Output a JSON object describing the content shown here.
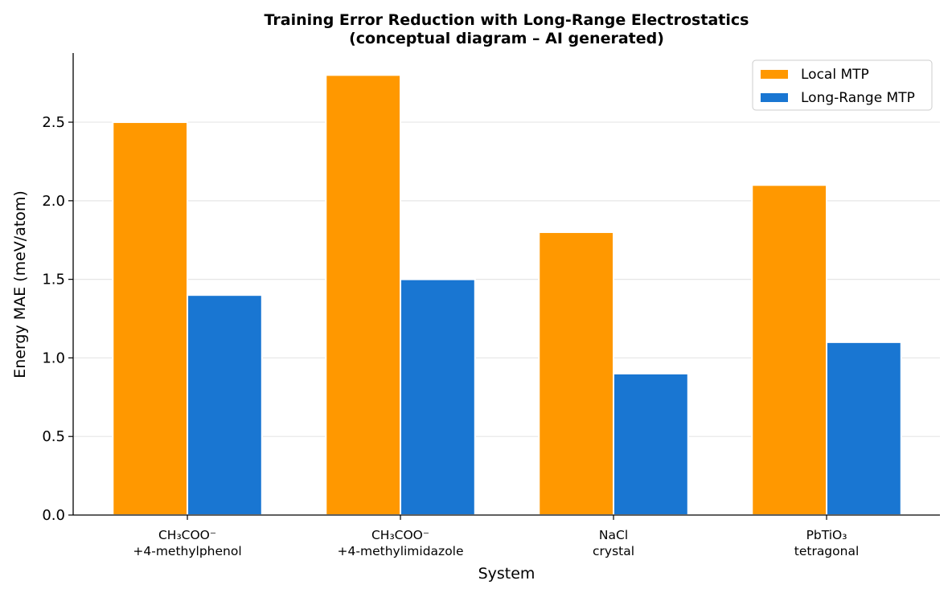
{
  "chart_data": {
    "type": "bar",
    "title": "Training Error Reduction with Long-Range Electrostatics",
    "subtitle": "(conceptual diagram – AI generated)",
    "xlabel": "System",
    "ylabel": "Energy MAE (meV/atom)",
    "categories": [
      [
        "CH₃COO⁻",
        "+4-methylphenol"
      ],
      [
        "CH₃COO⁻",
        "+4-methylimidazole"
      ],
      [
        "NaCl",
        "crystal"
      ],
      [
        "PbTiO₃",
        "tetragonal"
      ]
    ],
    "series": [
      {
        "name": "Local MTP",
        "values": [
          2.5,
          2.8,
          1.8,
          2.1
        ],
        "color": "#FF9800"
      },
      {
        "name": "Long-Range MTP",
        "values": [
          1.4,
          1.5,
          0.9,
          1.1
        ],
        "color": "#1976D2"
      }
    ],
    "ylim": [
      0,
      2.94
    ],
    "yticks": [
      "0.0",
      "0.5",
      "1.0",
      "1.5",
      "2.0",
      "2.5"
    ],
    "grid": "horizontal",
    "legend": "top-right"
  }
}
